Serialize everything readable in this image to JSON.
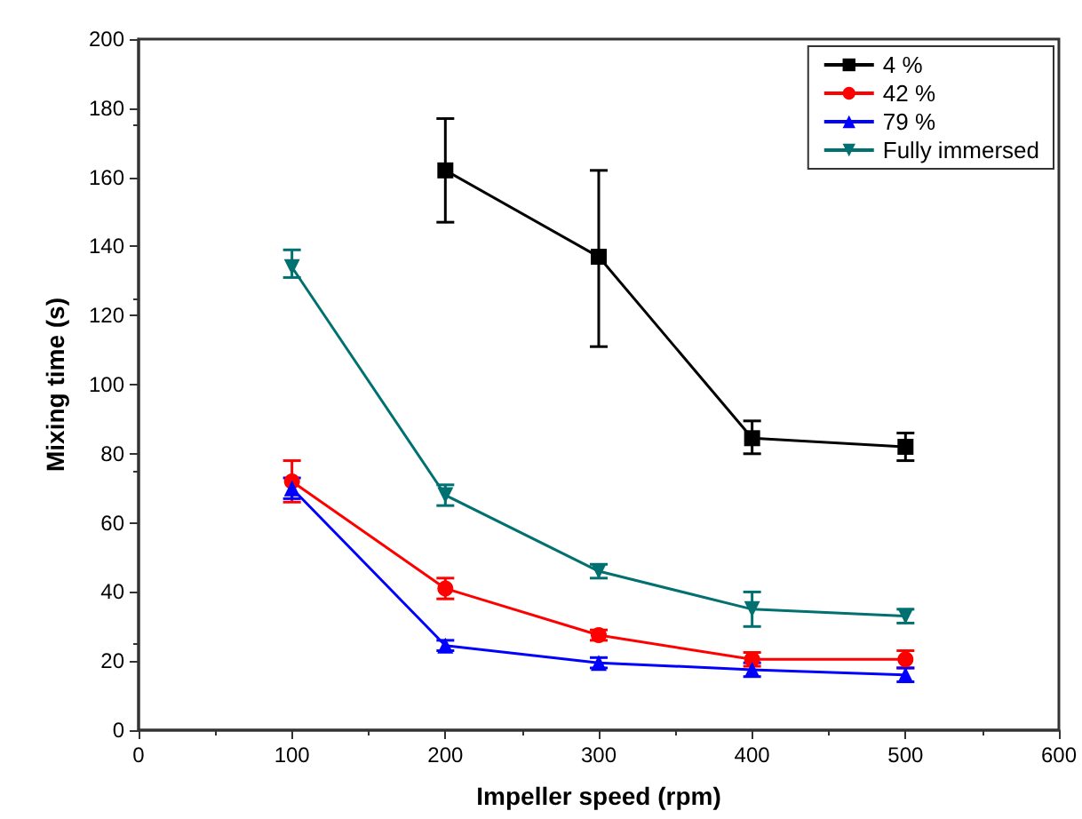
{
  "chart_data": {
    "type": "line",
    "xlabel": "Impeller speed (rpm)",
    "ylabel": "Mixing time (s)",
    "x": [
      100,
      200,
      300,
      400,
      500
    ],
    "xlim": [
      0,
      600
    ],
    "xticks": [
      0,
      100,
      200,
      300,
      400,
      500,
      600
    ],
    "ylim": [
      0,
      200
    ],
    "yticks": [
      0,
      20,
      40,
      60,
      80,
      100,
      120,
      140,
      160,
      180,
      200
    ],
    "grid": false,
    "legend": "top right",
    "line_style": "solid",
    "series": [
      {
        "name": "4 %",
        "color": "#000000",
        "marker": "square",
        "values": [
          null,
          162,
          137,
          84.5,
          82
        ],
        "errors": [
          null,
          [
            147,
            177
          ],
          [
            111,
            162
          ],
          [
            80,
            89.5
          ],
          [
            78,
            86
          ]
        ]
      },
      {
        "name": "42 %",
        "color": "#ff0000",
        "marker": "circle",
        "values": [
          72,
          41,
          27.5,
          20.5,
          20.5
        ],
        "errors": [
          [
            66,
            78
          ],
          [
            38,
            44
          ],
          [
            26,
            29
          ],
          [
            18.5,
            22.5
          ],
          [
            18,
            23
          ]
        ]
      },
      {
        "name": "79 %",
        "color": "#0000ff",
        "marker": "triangle",
        "values": [
          70,
          24.5,
          19.5,
          17.5,
          16
        ],
        "errors": [
          [
            67,
            73
          ],
          [
            23,
            26
          ],
          [
            18,
            21
          ],
          [
            15.5,
            19.5
          ],
          [
            14,
            18
          ]
        ]
      },
      {
        "name": "Fully immersed",
        "color": "#007070",
        "marker": "triangle-down",
        "values": [
          134,
          68,
          46,
          35,
          33
        ],
        "errors": [
          [
            131,
            139
          ],
          [
            65,
            71
          ],
          [
            44,
            48
          ],
          [
            30,
            40
          ],
          [
            31,
            35
          ]
        ]
      }
    ]
  }
}
